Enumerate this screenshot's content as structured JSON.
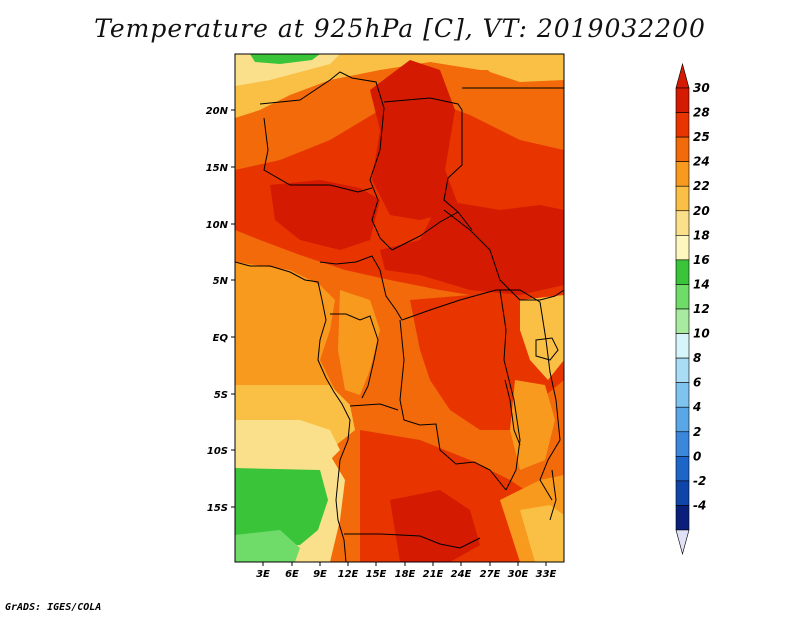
{
  "title": "Temperature at 925hPa [C], VT: 2019032200",
  "credit": "GrADS: IGES/COLA",
  "map": {
    "lat_labels": [
      "20N",
      "15N",
      "10N",
      "5N",
      "EQ",
      "5S",
      "10S",
      "15S"
    ],
    "lon_labels": [
      "3E",
      "6E",
      "9E",
      "12E",
      "15E",
      "18E",
      "21E",
      "24E",
      "27E",
      "30E",
      "33E"
    ],
    "colors": {
      "c30": "#d41a00",
      "c28": "#e83500",
      "c25": "#f26a0a",
      "c24": "#f89a1e",
      "c22": "#fac046",
      "c20": "#fbe08c",
      "c18": "#fdf7bf",
      "c16": "#39c43a",
      "c14": "#6fdc6a"
    }
  },
  "colorbar": {
    "labels": [
      "30",
      "28",
      "25",
      "24",
      "22",
      "20",
      "18",
      "16",
      "14",
      "12",
      "10",
      "8",
      "6",
      "4",
      "2",
      "0",
      "-2",
      "-4"
    ],
    "colors": [
      "#d41a00",
      "#e83500",
      "#f26a0a",
      "#f89a1e",
      "#fac046",
      "#fbe08c",
      "#fdf7bf",
      "#39c43a",
      "#6fdc6a",
      "#a8eba0",
      "#d6f5fb",
      "#a9dcf5",
      "#7fc3ef",
      "#5aa7e8",
      "#3a87dc",
      "#1d66c8",
      "#0f44a8",
      "#0a1f7a"
    ],
    "top_tip_color": "#d41a00",
    "bottom_tip_color": "#e0e0f6"
  }
}
